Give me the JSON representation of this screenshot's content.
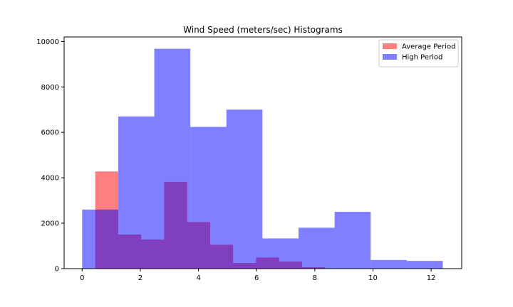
{
  "chart_data": {
    "type": "bar",
    "title": "Wind Speed (meters/sec) Histograms",
    "xlabel": "",
    "ylabel": "",
    "xlim": [
      -0.62,
      13.05
    ],
    "ylim": [
      0,
      10200
    ],
    "x_ticks": [
      0,
      2,
      4,
      6,
      8,
      10,
      12
    ],
    "y_ticks": [
      0,
      2000,
      4000,
      6000,
      8000,
      10000
    ],
    "grid": false,
    "legend_position": "top-right",
    "series": [
      {
        "name": "Average Period",
        "color": "#ff0000",
        "opacity": 0.5,
        "bins": [
          {
            "x0": 0.45,
            "x1": 1.24,
            "count": 4280
          },
          {
            "x0": 1.24,
            "x1": 2.03,
            "count": 1500
          },
          {
            "x0": 2.03,
            "x1": 2.82,
            "count": 1280
          },
          {
            "x0": 2.82,
            "x1": 3.61,
            "count": 3820
          },
          {
            "x0": 3.61,
            "x1": 4.4,
            "count": 2050
          },
          {
            "x0": 4.4,
            "x1": 5.19,
            "count": 1050
          },
          {
            "x0": 5.19,
            "x1": 5.98,
            "count": 250
          },
          {
            "x0": 5.98,
            "x1": 6.77,
            "count": 490
          },
          {
            "x0": 6.77,
            "x1": 7.56,
            "count": 310
          },
          {
            "x0": 7.56,
            "x1": 8.35,
            "count": 60
          }
        ]
      },
      {
        "name": "High Period",
        "color": "#0000ff",
        "opacity": 0.5,
        "bins": [
          {
            "x0": 0.0,
            "x1": 1.24,
            "count": 2600
          },
          {
            "x0": 1.24,
            "x1": 2.48,
            "count": 6700
          },
          {
            "x0": 2.48,
            "x1": 3.72,
            "count": 9680
          },
          {
            "x0": 3.72,
            "x1": 4.96,
            "count": 6240
          },
          {
            "x0": 4.96,
            "x1": 6.2,
            "count": 7000
          },
          {
            "x0": 6.2,
            "x1": 7.44,
            "count": 1330
          },
          {
            "x0": 7.44,
            "x1": 8.68,
            "count": 1800
          },
          {
            "x0": 8.68,
            "x1": 9.92,
            "count": 2500
          },
          {
            "x0": 9.92,
            "x1": 11.16,
            "count": 380
          },
          {
            "x0": 11.16,
            "x1": 12.4,
            "count": 340
          }
        ]
      }
    ]
  }
}
